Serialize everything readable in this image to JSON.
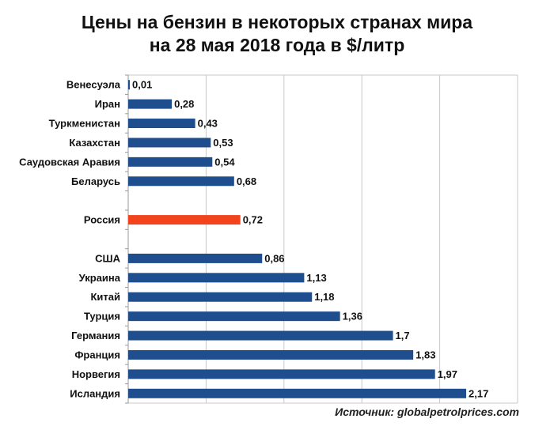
{
  "chart_data": {
    "type": "bar",
    "orientation": "horizontal",
    "title": [
      "Цены на бензин в некоторых странах мира",
      "на 28 мая 2018 года в $/литр"
    ],
    "categories": [
      "Венесуэла",
      "Иран",
      "Туркменистан",
      "Казахстан",
      "Саудовская Аравия",
      "Беларусь",
      "",
      "Россия",
      "",
      "США",
      "Украина",
      "Китай",
      "Турция",
      "Германия",
      "Франция",
      "Норвегия",
      "Исландия"
    ],
    "values": [
      0.01,
      0.28,
      0.43,
      0.53,
      0.54,
      0.68,
      null,
      0.72,
      null,
      0.86,
      1.13,
      1.18,
      1.36,
      1.7,
      1.83,
      1.97,
      2.17
    ],
    "data_labels": [
      "0,01",
      "0,28",
      "0,43",
      "0,53",
      "0,54",
      "0,68",
      "",
      "0,72",
      "",
      "0,86",
      "1,13",
      "1,18",
      "1,36",
      "1,7",
      "1,83",
      "1,97",
      "2,17"
    ],
    "highlight": "Россия",
    "xlim": [
      0,
      2.5
    ],
    "x_grid_step": 0.5,
    "grid": true,
    "x_tick_labels_shown": false,
    "colors": {
      "bar": "#1f4e8f",
      "highlight": "#f2431c",
      "grid": "#c8c8c8"
    },
    "source": "Источник: globalpetrolprices.com"
  }
}
